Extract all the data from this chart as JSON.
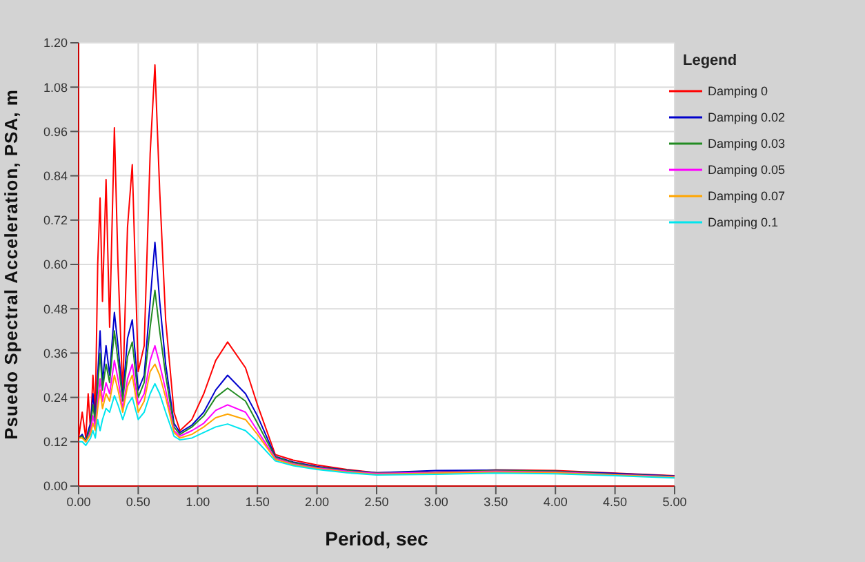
{
  "chart_data": {
    "type": "line",
    "xlabel": "Period, sec",
    "ylabel": "Psuedo Spectral Acceleration, PSA, m",
    "legend_title": "Legend",
    "legend": "top right",
    "grid": true,
    "marker": "none",
    "line_style": "solid",
    "x": [
      0,
      0.03,
      0.06,
      0.08,
      0.1,
      0.12,
      0.14,
      0.16,
      0.18,
      0.2,
      0.23,
      0.26,
      0.3,
      0.33,
      0.37,
      0.41,
      0.45,
      0.5,
      0.55,
      0.6,
      0.64,
      0.68,
      0.73,
      0.8,
      0.85,
      0.95,
      1.05,
      1.15,
      1.25,
      1.4,
      1.5,
      1.65,
      1.8,
      2.0,
      2.25,
      2.5,
      3.0,
      3.5,
      4.0,
      4.5,
      5.0
    ],
    "xlim": [
      0,
      5
    ],
    "xticks": [
      {
        "value": 0,
        "label": "0.00"
      },
      {
        "value": 0.5,
        "label": "0.50"
      },
      {
        "value": 1,
        "label": "1.00"
      },
      {
        "value": 1.5,
        "label": "1.50"
      },
      {
        "value": 2,
        "label": "2.00"
      },
      {
        "value": 2.5,
        "label": "2.50"
      },
      {
        "value": 3,
        "label": "3.00"
      },
      {
        "value": 3.5,
        "label": "3.50"
      },
      {
        "value": 4,
        "label": "4.00"
      },
      {
        "value": 4.5,
        "label": "4.50"
      },
      {
        "value": 5,
        "label": "5.00"
      }
    ],
    "ylim": [
      0,
      1.2
    ],
    "yticks": [
      {
        "value": 0,
        "label": "0.00"
      },
      {
        "value": 0.12,
        "label": "0.12"
      },
      {
        "value": 0.24,
        "label": "0.24"
      },
      {
        "value": 0.36,
        "label": "0.36"
      },
      {
        "value": 0.48,
        "label": "0.48"
      },
      {
        "value": 0.6,
        "label": "0.60"
      },
      {
        "value": 0.72,
        "label": "0.72"
      },
      {
        "value": 0.84,
        "label": "0.84"
      },
      {
        "value": 0.96,
        "label": "0.96"
      },
      {
        "value": 1.08,
        "label": "1.08"
      },
      {
        "value": 1.2,
        "label": "1.20"
      }
    ],
    "series": [
      {
        "name": "Damping 0",
        "color": "#ff0000",
        "values": [
          0.13,
          0.2,
          0.13,
          0.25,
          0.15,
          0.3,
          0.2,
          0.6,
          0.78,
          0.5,
          0.83,
          0.43,
          0.97,
          0.6,
          0.25,
          0.7,
          0.87,
          0.31,
          0.38,
          0.9,
          1.14,
          0.8,
          0.45,
          0.2,
          0.15,
          0.18,
          0.25,
          0.34,
          0.39,
          0.32,
          0.22,
          0.085,
          0.07,
          0.057,
          0.045,
          0.036,
          0.038,
          0.044,
          0.042,
          0.035,
          0.028
        ]
      },
      {
        "name": "Damping 0.02",
        "color": "#0000cc",
        "values": [
          0.13,
          0.14,
          0.12,
          0.15,
          0.17,
          0.25,
          0.18,
          0.3,
          0.42,
          0.28,
          0.38,
          0.3,
          0.47,
          0.38,
          0.24,
          0.4,
          0.45,
          0.26,
          0.3,
          0.5,
          0.66,
          0.5,
          0.33,
          0.17,
          0.145,
          0.165,
          0.2,
          0.26,
          0.3,
          0.25,
          0.19,
          0.08,
          0.065,
          0.053,
          0.043,
          0.036,
          0.042,
          0.043,
          0.04,
          0.034,
          0.027
        ]
      },
      {
        "name": "Damping 0.03",
        "color": "#228b22",
        "values": [
          0.13,
          0.135,
          0.12,
          0.14,
          0.16,
          0.22,
          0.17,
          0.27,
          0.36,
          0.26,
          0.33,
          0.28,
          0.42,
          0.34,
          0.23,
          0.35,
          0.39,
          0.24,
          0.28,
          0.43,
          0.53,
          0.42,
          0.3,
          0.16,
          0.14,
          0.16,
          0.19,
          0.24,
          0.265,
          0.23,
          0.17,
          0.078,
          0.063,
          0.051,
          0.042,
          0.035,
          0.038,
          0.042,
          0.04,
          0.032,
          0.026
        ]
      },
      {
        "name": "Damping 0.05",
        "color": "#ff00ff",
        "values": [
          null,
          null,
          0.12,
          0.13,
          0.15,
          0.19,
          0.16,
          0.23,
          0.29,
          0.23,
          0.28,
          0.25,
          0.34,
          0.29,
          0.21,
          0.29,
          0.33,
          0.22,
          0.25,
          0.34,
          0.38,
          0.33,
          0.26,
          0.15,
          0.135,
          0.15,
          0.17,
          0.205,
          0.22,
          0.2,
          0.15,
          0.075,
          0.06,
          0.049,
          0.04,
          0.034,
          0.037,
          0.04,
          0.038,
          0.031,
          0.025
        ]
      },
      {
        "name": "Damping 0.07",
        "color": "#ffa500",
        "values": [
          0.13,
          0.13,
          0.12,
          0.13,
          0.14,
          0.17,
          0.15,
          0.21,
          0.26,
          0.21,
          0.25,
          0.23,
          0.3,
          0.26,
          0.2,
          0.27,
          0.3,
          0.2,
          0.23,
          0.31,
          0.33,
          0.3,
          0.24,
          0.145,
          0.13,
          0.14,
          0.16,
          0.185,
          0.195,
          0.18,
          0.14,
          0.072,
          0.058,
          0.047,
          0.038,
          0.032,
          0.035,
          0.038,
          0.036,
          0.03,
          0.024
        ]
      },
      {
        "name": "Damping 0.1",
        "color": "#00e5ee",
        "values": [
          0.12,
          0.12,
          0.11,
          0.12,
          0.13,
          0.15,
          0.13,
          0.18,
          0.15,
          0.18,
          0.21,
          0.2,
          0.245,
          0.22,
          0.18,
          0.22,
          0.24,
          0.18,
          0.2,
          0.25,
          0.277,
          0.25,
          0.2,
          0.135,
          0.125,
          0.13,
          0.145,
          0.16,
          0.168,
          0.15,
          0.12,
          0.068,
          0.055,
          0.045,
          0.036,
          0.03,
          0.032,
          0.035,
          0.033,
          0.028,
          0.022
        ]
      }
    ]
  }
}
